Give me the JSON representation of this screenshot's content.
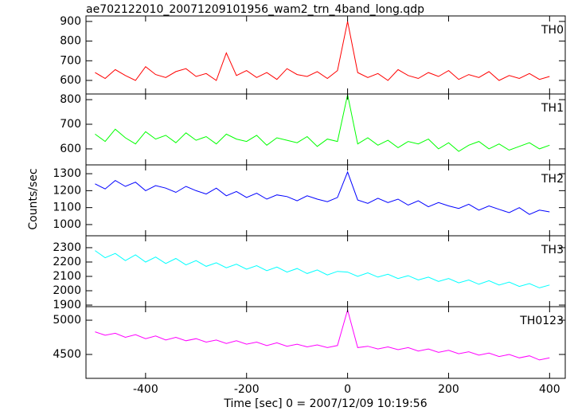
{
  "chart_data": {
    "type": "line",
    "title": "ae702122010_20071209101956_wam2_trn_4band_long.qdp",
    "xlabel": "Time [sec] 0 = 2007/12/09 10:19:56",
    "ylabel": "Counts/sec",
    "x": [
      -500,
      -480,
      -460,
      -440,
      -420,
      -400,
      -380,
      -360,
      -340,
      -320,
      -300,
      -280,
      -260,
      -240,
      -220,
      -200,
      -180,
      -160,
      -140,
      -120,
      -100,
      -80,
      -60,
      -40,
      -20,
      0,
      20,
      40,
      60,
      80,
      100,
      120,
      140,
      160,
      180,
      200,
      220,
      240,
      260,
      280,
      300,
      320,
      340,
      360,
      380,
      400
    ],
    "xlim": [
      -518,
      431
    ],
    "xticks": [
      -400,
      -200,
      0,
      200,
      400
    ],
    "series": [
      {
        "name": "TH0",
        "color": "#ff0000",
        "ylim": [
          531,
          928
        ],
        "yticks": [
          600,
          700,
          800,
          900
        ],
        "values": [
          640,
          610,
          655,
          625,
          600,
          670,
          630,
          615,
          645,
          660,
          620,
          635,
          600,
          740,
          625,
          650,
          615,
          640,
          605,
          660,
          630,
          620,
          645,
          610,
          650,
          900,
          640,
          615,
          635,
          600,
          655,
          625,
          610,
          640,
          620,
          650,
          605,
          630,
          615,
          645,
          600,
          625,
          610,
          635,
          605,
          620
        ]
      },
      {
        "name": "TH1",
        "color": "#00ff00",
        "ylim": [
          535,
          823
        ],
        "yticks": [
          600,
          700,
          800
        ],
        "values": [
          660,
          630,
          680,
          645,
          620,
          670,
          640,
          655,
          625,
          665,
          635,
          650,
          620,
          660,
          640,
          630,
          655,
          615,
          645,
          635,
          625,
          650,
          610,
          640,
          630,
          820,
          620,
          645,
          615,
          635,
          605,
          630,
          620,
          640,
          600,
          625,
          590,
          615,
          630,
          600,
          620,
          595,
          610,
          625,
          600,
          615
        ]
      },
      {
        "name": "TH2",
        "color": "#0000ff",
        "ylim": [
          934,
          1352
        ],
        "yticks": [
          1000,
          1100,
          1200,
          1300
        ],
        "values": [
          1240,
          1210,
          1260,
          1225,
          1250,
          1200,
          1230,
          1215,
          1190,
          1225,
          1200,
          1180,
          1215,
          1170,
          1195,
          1160,
          1185,
          1150,
          1175,
          1165,
          1140,
          1170,
          1150,
          1135,
          1160,
          1310,
          1145,
          1125,
          1155,
          1130,
          1150,
          1115,
          1140,
          1105,
          1130,
          1110,
          1095,
          1120,
          1085,
          1110,
          1090,
          1070,
          1100,
          1060,
          1085,
          1075
        ]
      },
      {
        "name": "TH3",
        "color": "#00ffff",
        "ylim": [
          1889,
          2383
        ],
        "yticks": [
          1900,
          2000,
          2100,
          2200,
          2300
        ],
        "values": [
          2280,
          2230,
          2260,
          2210,
          2250,
          2200,
          2235,
          2190,
          2225,
          2180,
          2210,
          2170,
          2195,
          2160,
          2185,
          2150,
          2175,
          2140,
          2165,
          2130,
          2155,
          2120,
          2145,
          2110,
          2135,
          2130,
          2100,
          2125,
          2095,
          2115,
          2085,
          2105,
          2075,
          2095,
          2065,
          2085,
          2055,
          2075,
          2045,
          2070,
          2040,
          2060,
          2030,
          2050,
          2020,
          2040
        ]
      },
      {
        "name": "TH0123",
        "color": "#ff00ff",
        "ylim": [
          4151,
          5198
        ],
        "yticks": [
          4500,
          5000
        ],
        "values": [
          4830,
          4780,
          4810,
          4750,
          4790,
          4730,
          4770,
          4710,
          4750,
          4700,
          4730,
          4680,
          4710,
          4660,
          4700,
          4650,
          4680,
          4630,
          4670,
          4620,
          4650,
          4610,
          4640,
          4600,
          4630,
          5150,
          4600,
          4620,
          4580,
          4610,
          4570,
          4600,
          4550,
          4580,
          4530,
          4560,
          4510,
          4540,
          4490,
          4520,
          4470,
          4500,
          4450,
          4480,
          4420,
          4450
        ]
      }
    ]
  }
}
